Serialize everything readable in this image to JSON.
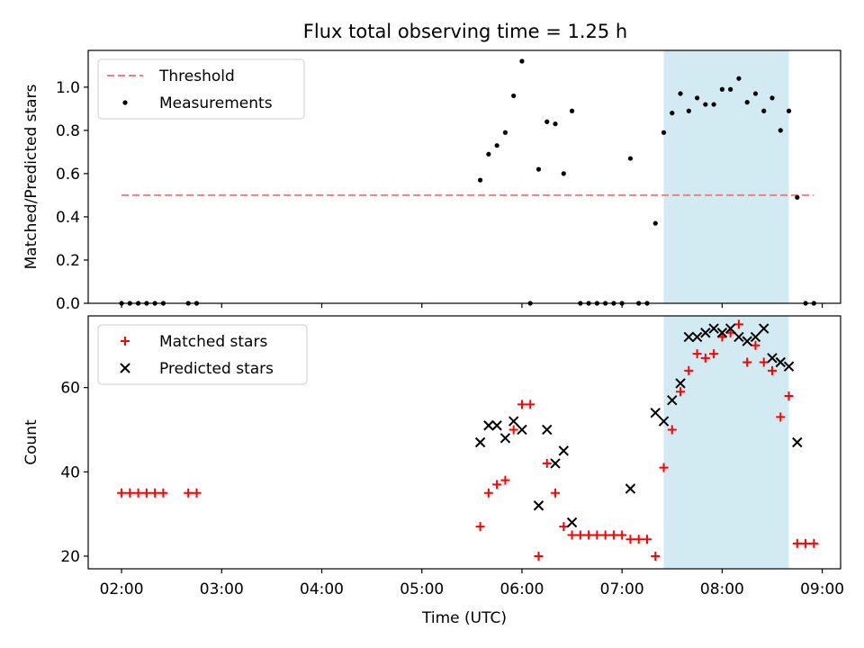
{
  "title": "Flux total observing time = 1.25 h",
  "colors": {
    "threshold": "#f08080",
    "measurement": "#000000",
    "matched": "#ff0000",
    "predicted": "#000000",
    "highlight": "#add8e6"
  },
  "chart_data": [
    {
      "type": "scatter",
      "title": "Flux total observing time = 1.25 h",
      "ylabel": "Matched/Predicted stars",
      "xlabel": "",
      "xlim": [
        "01:40",
        "09:11"
      ],
      "ylim": [
        0,
        1.17
      ],
      "yticks": [
        "0.0",
        "0.2",
        "0.4",
        "0.6",
        "0.8",
        "1.0"
      ],
      "xticks": [
        "02:00",
        "03:00",
        "04:00",
        "05:00",
        "06:00",
        "07:00",
        "08:00",
        "09:00"
      ],
      "legend_position": "upper-left",
      "highlight_span": [
        "07:25",
        "08:40"
      ],
      "series": [
        {
          "name": "Threshold",
          "kind": "dashed-line",
          "x": [
            "02:00",
            "08:55"
          ],
          "y": [
            0.5,
            0.5
          ]
        },
        {
          "name": "Measurements",
          "kind": "dot",
          "x": [
            "02:00",
            "02:05",
            "02:10",
            "02:15",
            "02:20",
            "02:25",
            "02:40",
            "02:45",
            "05:35",
            "05:40",
            "05:45",
            "05:50",
            "05:55",
            "06:00",
            "06:05",
            "06:10",
            "06:15",
            "06:20",
            "06:25",
            "06:30",
            "06:35",
            "06:40",
            "06:45",
            "06:50",
            "06:55",
            "07:00",
            "07:05",
            "07:10",
            "07:15",
            "07:20",
            "07:25",
            "07:30",
            "07:35",
            "07:40",
            "07:45",
            "07:50",
            "07:55",
            "08:00",
            "08:05",
            "08:10",
            "08:15",
            "08:20",
            "08:25",
            "08:30",
            "08:35",
            "08:40",
            "08:45",
            "08:50",
            "08:55"
          ],
          "y": [
            0,
            0,
            0,
            0,
            0,
            0,
            0,
            0,
            0.57,
            0.69,
            0.73,
            0.79,
            0.96,
            1.12,
            0,
            0.62,
            0.84,
            0.83,
            0.6,
            0.89,
            0,
            0,
            0,
            0,
            0,
            0,
            0.67,
            0,
            0,
            0.37,
            0.79,
            0.88,
            0.97,
            0.89,
            0.95,
            0.92,
            0.92,
            0.99,
            0.99,
            1.04,
            0.93,
            0.97,
            0.89,
            0.95,
            0.8,
            0.89,
            0.49,
            0,
            0
          ]
        }
      ]
    },
    {
      "type": "scatter",
      "title": "",
      "ylabel": "Count",
      "xlabel": "Time (UTC)",
      "xlim": [
        "01:40",
        "09:11"
      ],
      "ylim": [
        17,
        77
      ],
      "yticks": [
        "20",
        "40",
        "60"
      ],
      "xticks": [
        "02:00",
        "03:00",
        "04:00",
        "05:00",
        "06:00",
        "07:00",
        "08:00",
        "09:00"
      ],
      "legend_position": "upper-left",
      "highlight_span": [
        "07:25",
        "08:40"
      ],
      "series": [
        {
          "name": "Matched stars",
          "kind": "plus",
          "x": [
            "02:00",
            "02:05",
            "02:10",
            "02:15",
            "02:20",
            "02:25",
            "02:40",
            "02:45",
            "05:35",
            "05:40",
            "05:45",
            "05:50",
            "05:55",
            "06:00",
            "06:05",
            "06:10",
            "06:15",
            "06:20",
            "06:25",
            "06:30",
            "06:35",
            "06:40",
            "06:45",
            "06:50",
            "06:55",
            "07:00",
            "07:05",
            "07:10",
            "07:15",
            "07:20",
            "07:25",
            "07:30",
            "07:35",
            "07:40",
            "07:45",
            "07:50",
            "07:55",
            "08:00",
            "08:05",
            "08:10",
            "08:15",
            "08:20",
            "08:25",
            "08:30",
            "08:35",
            "08:40",
            "08:45",
            "08:50",
            "08:55"
          ],
          "y": [
            35,
            35,
            35,
            35,
            35,
            35,
            35,
            35,
            27,
            35,
            37,
            38,
            50,
            56,
            56,
            20,
            42,
            35,
            27,
            25,
            25,
            25,
            25,
            25,
            25,
            25,
            24,
            24,
            24,
            20,
            41,
            50,
            59,
            64,
            68,
            67,
            68,
            72,
            73,
            75,
            66,
            70,
            66,
            64,
            53,
            58,
            23,
            23,
            23
          ]
        },
        {
          "name": "Predicted stars",
          "kind": "x",
          "x": [
            "05:35",
            "05:40",
            "05:45",
            "05:50",
            "05:55",
            "06:00",
            "06:10",
            "06:15",
            "06:20",
            "06:25",
            "06:30",
            "07:05",
            "07:20",
            "07:25",
            "07:30",
            "07:35",
            "07:40",
            "07:45",
            "07:50",
            "07:55",
            "08:00",
            "08:05",
            "08:10",
            "08:15",
            "08:20",
            "08:25",
            "08:30",
            "08:35",
            "08:40",
            "08:45"
          ],
          "y": [
            47,
            51,
            51,
            48,
            52,
            50,
            32,
            50,
            42,
            45,
            28,
            36,
            54,
            52,
            57,
            61,
            72,
            72,
            73,
            74,
            73,
            74,
            72,
            71,
            72,
            74,
            67,
            66,
            65,
            47
          ]
        }
      ]
    }
  ]
}
